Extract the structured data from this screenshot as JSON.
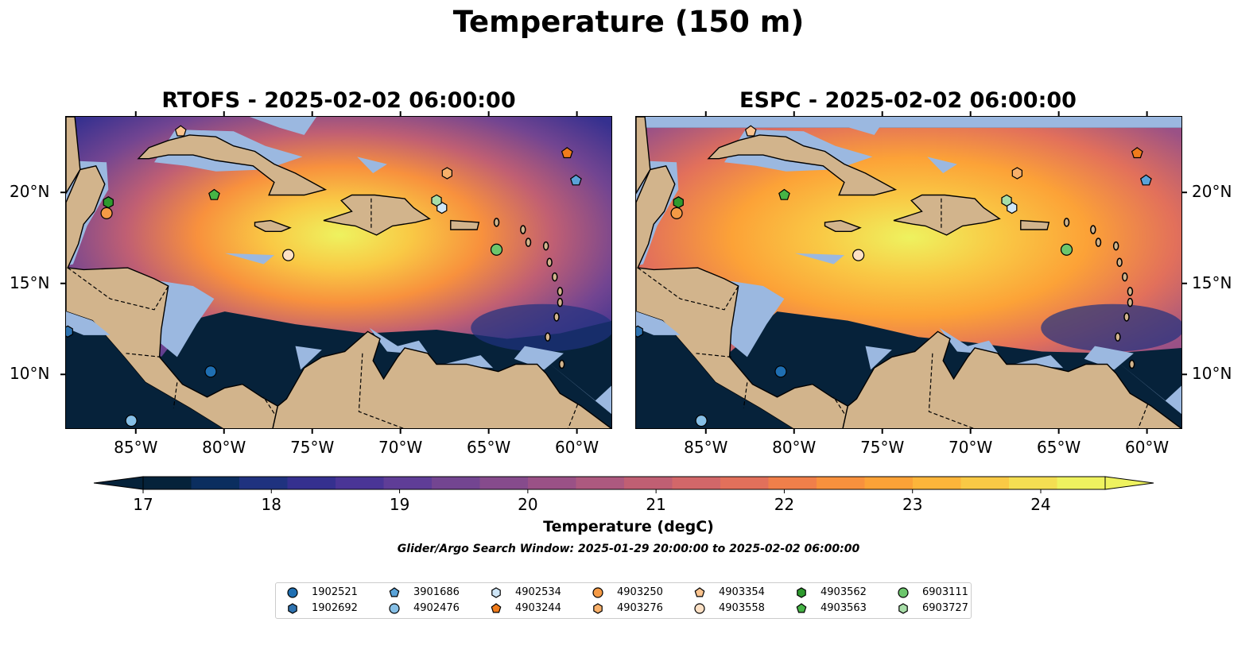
{
  "suptitle": "Temperature (150 m)",
  "maps": [
    {
      "title": "RTOFS - 2025-02-02 06:00:00"
    },
    {
      "title": "ESPC - 2025-02-02 06:00:00"
    }
  ],
  "axes": {
    "lon_labels": [
      "85°W",
      "80°W",
      "75°W",
      "70°W",
      "65°W",
      "60°W"
    ],
    "lat_labels": [
      "20°N",
      "15°N",
      "10°N"
    ]
  },
  "colorbar": {
    "label": "Temperature (degC)",
    "ticks": [
      "17",
      "18",
      "19",
      "20",
      "21",
      "22",
      "23",
      "24"
    ],
    "colors": [
      "#05223a",
      "#0b2e5f",
      "#1f327f",
      "#35308f",
      "#4a3596",
      "#5f3d97",
      "#734591",
      "#864b8c",
      "#9a5186",
      "#ad597f",
      "#c05f73",
      "#d26769",
      "#e2705b",
      "#f07f4a",
      "#f8913d",
      "#fca237",
      "#fdb53a",
      "#f9c945",
      "#f4de52",
      "#eef25f"
    ],
    "extend_low": "#05223a",
    "extend_high": "#eef25f"
  },
  "search_window": "Glider/Argo Search Window: 2025-01-29 20:00:00 to 2025-02-02 06:00:00",
  "colors": {
    "ocean_shallow": "#9bb8e0",
    "land": "#d2b48c",
    "deep_background": "#06223a"
  },
  "legend": [
    {
      "id": "1902521",
      "marker": "circle",
      "color": "#1f6fb2"
    },
    {
      "id": "1902692",
      "marker": "hexagon",
      "color": "#2f73b0"
    },
    {
      "id": "3901686",
      "marker": "pentagon",
      "color": "#5aa3d8"
    },
    {
      "id": "4902476",
      "marker": "circle",
      "color": "#86bfe6"
    },
    {
      "id": "4902534",
      "marker": "hexagon",
      "color": "#cfe6f7"
    },
    {
      "id": "4903244",
      "marker": "pentagon",
      "color": "#f07c1c"
    },
    {
      "id": "4903250",
      "marker": "circle",
      "color": "#f59a45"
    },
    {
      "id": "4903276",
      "marker": "hexagon",
      "color": "#f8b06a"
    },
    {
      "id": "4903354",
      "marker": "pentagon",
      "color": "#fbc48f"
    },
    {
      "id": "4903558",
      "marker": "circle",
      "color": "#fde0c4"
    },
    {
      "id": "4903562",
      "marker": "hexagon",
      "color": "#2e9a2e"
    },
    {
      "id": "4903563",
      "marker": "pentagon",
      "color": "#46b446"
    },
    {
      "id": "6903111",
      "marker": "circle",
      "color": "#6cc66c"
    },
    {
      "id": "6903727",
      "marker": "hexagon",
      "color": "#a8dea8"
    }
  ],
  "floats": [
    {
      "id": "1902521",
      "lon": -80.8,
      "lat": 10.2
    },
    {
      "id": "1902692",
      "lon": -88.9,
      "lat": 12.4
    },
    {
      "id": "3901686",
      "lon": -60.1,
      "lat": 20.7
    },
    {
      "id": "4902476",
      "lon": -85.3,
      "lat": 7.5
    },
    {
      "id": "4902534",
      "lon": -67.7,
      "lat": 19.2
    },
    {
      "id": "4903244",
      "lon": -60.6,
      "lat": 22.2
    },
    {
      "id": "4903250",
      "lon": -86.7,
      "lat": 18.9
    },
    {
      "id": "4903276",
      "lon": -67.4,
      "lat": 21.1
    },
    {
      "id": "4903354",
      "lon": -82.5,
      "lat": 23.4
    },
    {
      "id": "4903558",
      "lon": -76.4,
      "lat": 16.6
    },
    {
      "id": "4903562",
      "lon": -86.6,
      "lat": 19.5
    },
    {
      "id": "4903563",
      "lon": -80.6,
      "lat": 19.9
    },
    {
      "id": "6903111",
      "lon": -64.6,
      "lat": 16.9
    },
    {
      "id": "6903727",
      "lon": -68.0,
      "lat": 19.6
    }
  ]
}
